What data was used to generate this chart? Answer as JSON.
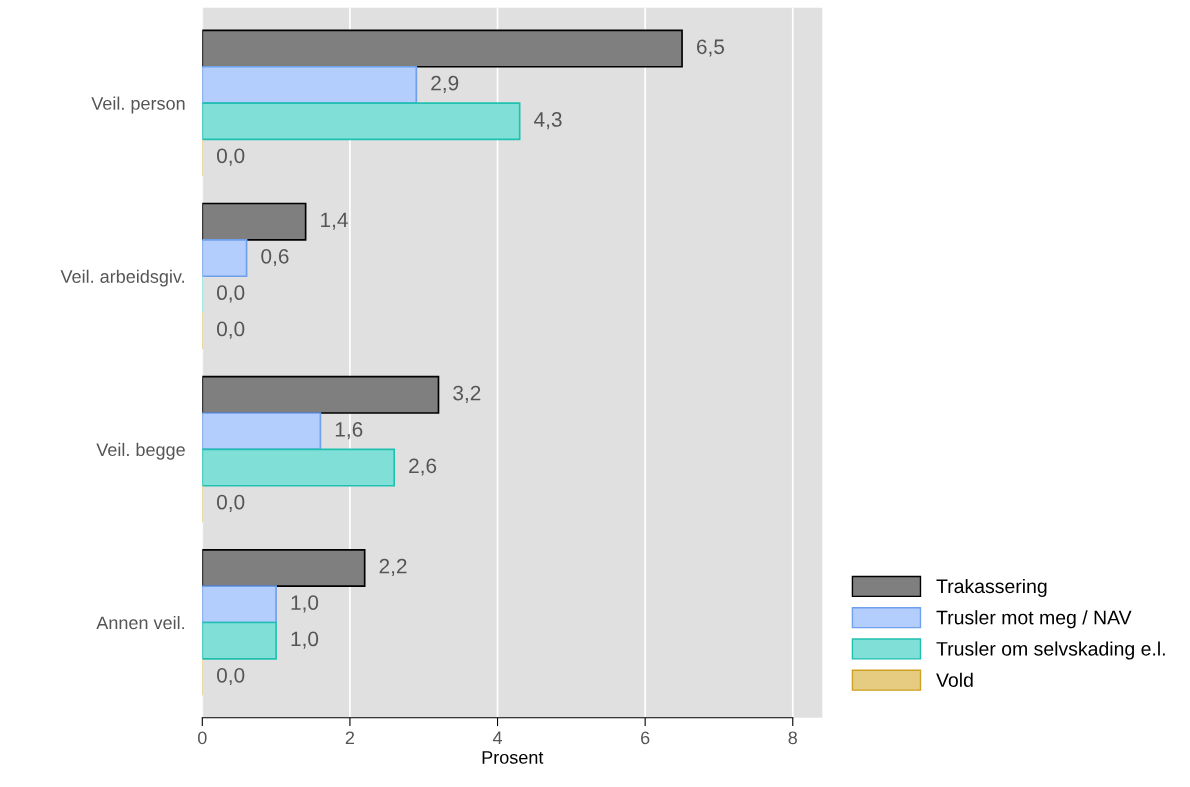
{
  "chart_data": {
    "type": "bar",
    "orientation": "horizontal",
    "xlabel": "Prosent",
    "categories": [
      "Veil. person",
      "Veil. arbeidsgiv.",
      "Veil. begge",
      "Annen veil."
    ],
    "series": [
      {
        "name": "Trakassering",
        "color": "#7f7f7f",
        "values": [
          6.5,
          1.4,
          3.2,
          2.2
        ],
        "value_labels": [
          "6,5",
          "1,4",
          "3,2",
          "2,2"
        ]
      },
      {
        "name": "Trusler mot meg / NAV",
        "color": "#b3cdfc",
        "values": [
          2.9,
          0.6,
          1.6,
          1.0
        ],
        "value_labels": [
          "2,9",
          "0,6",
          "1,6",
          "1,0"
        ]
      },
      {
        "name": "Trusler om selvskading e.l.",
        "color": "#80e0d8",
        "values": [
          4.3,
          0.0,
          2.6,
          1.0
        ],
        "value_labels": [
          "4,3",
          "0,0",
          "2,6",
          "1,0"
        ]
      },
      {
        "name": "Vold",
        "color": "#e6cc80",
        "values": [
          0.0,
          0.0,
          0.0,
          0.0
        ],
        "value_labels": [
          "0,0",
          "0,0",
          "0,0",
          "0,0"
        ]
      }
    ],
    "xlim": [
      0,
      8.4
    ],
    "xticks": [
      0,
      2,
      4,
      6,
      8
    ],
    "grid": "x",
    "legend": "bottom right"
  }
}
